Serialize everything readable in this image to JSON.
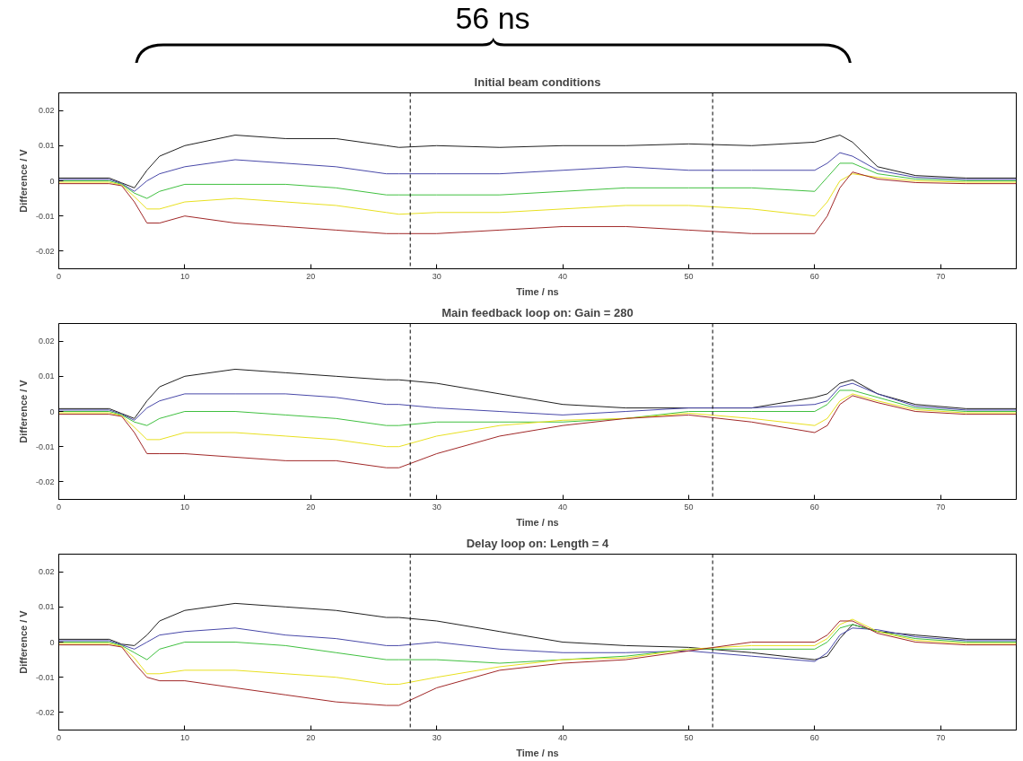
{
  "chart_data": [
    {
      "type": "line",
      "title": "Initial beam conditions",
      "xlabel": "Time / ns",
      "ylabel": "Difference / V",
      "xlim": [
        0,
        76
      ],
      "ylim": [
        -0.025,
        0.025
      ],
      "xticks": [
        0,
        10,
        20,
        30,
        40,
        50,
        60,
        70
      ],
      "yticks": [
        -0.02,
        -0.01,
        0,
        0.01,
        0.02
      ],
      "grid": false,
      "marker": "none",
      "line_style": "solid",
      "x": [
        0,
        4,
        5,
        6,
        7,
        8,
        10,
        14,
        18,
        22,
        26,
        27,
        30,
        35,
        40,
        45,
        50,
        55,
        60,
        61,
        62,
        63,
        65,
        68,
        72,
        76
      ],
      "series": [
        {
          "color": "#202020",
          "values": [
            0.0008,
            0.0008,
            -0.0006,
            -0.002,
            0.003,
            0.007,
            0.01,
            0.013,
            0.012,
            0.012,
            0.01,
            0.0095,
            0.01,
            0.0095,
            0.01,
            0.01,
            0.0105,
            0.01,
            0.011,
            0.012,
            0.013,
            0.011,
            0.004,
            0.0015,
            0.0008,
            0.0008
          ]
        },
        {
          "color": "#4848a8",
          "values": [
            0.0004,
            0.0004,
            -0.0008,
            -0.003,
            0,
            0.002,
            0.004,
            0.006,
            0.005,
            0.004,
            0.002,
            0.002,
            0.002,
            0.002,
            0.003,
            0.004,
            0.003,
            0.003,
            0.003,
            0.005,
            0.008,
            0.007,
            0.003,
            0.001,
            0.0004,
            0.0004
          ]
        },
        {
          "color": "#40c040",
          "values": [
            0,
            0,
            -0.001,
            -0.0035,
            -0.005,
            -0.003,
            -0.001,
            -0.001,
            -0.001,
            -0.002,
            -0.004,
            -0.004,
            -0.004,
            -0.004,
            -0.003,
            -0.002,
            -0.002,
            -0.002,
            -0.003,
            0.001,
            0.005,
            0.005,
            0.002,
            0.0005,
            0,
            0
          ]
        },
        {
          "color": "#e8e020",
          "values": [
            -0.0004,
            -0.0004,
            -0.0012,
            -0.0045,
            -0.008,
            -0.008,
            -0.006,
            -0.005,
            -0.006,
            -0.007,
            -0.009,
            -0.0095,
            -0.009,
            -0.009,
            -0.008,
            -0.007,
            -0.007,
            -0.008,
            -0.01,
            -0.006,
            0,
            0.002,
            0.001,
            0,
            -0.0004,
            -0.0004
          ]
        },
        {
          "color": "#a02828",
          "values": [
            -0.0008,
            -0.0008,
            -0.0014,
            -0.006,
            -0.012,
            -0.012,
            -0.01,
            -0.012,
            -0.013,
            -0.014,
            -0.015,
            -0.015,
            -0.015,
            -0.014,
            -0.013,
            -0.013,
            -0.014,
            -0.015,
            -0.015,
            -0.01,
            -0.002,
            0.0025,
            0.0005,
            -0.0005,
            -0.0008,
            -0.0008
          ]
        }
      ],
      "ref_lines": [
        {
          "axis": "x",
          "value": 27.9,
          "color": "#000000",
          "line_style": "dashed"
        },
        {
          "axis": "x",
          "value": 51.9,
          "color": "#000000",
          "line_style": "dashed"
        }
      ],
      "annotations": [
        "56 ns"
      ]
    },
    {
      "type": "line",
      "title": "Main feedback loop on: Gain = 280",
      "xlabel": "Time / ns",
      "ylabel": "Difference / V",
      "xlim": [
        0,
        76
      ],
      "ylim": [
        -0.025,
        0.025
      ],
      "xticks": [
        0,
        10,
        20,
        30,
        40,
        50,
        60,
        70
      ],
      "yticks": [
        -0.02,
        -0.01,
        0,
        0.01,
        0.02
      ],
      "grid": false,
      "marker": "none",
      "line_style": "solid",
      "x": [
        0,
        4,
        5,
        6,
        7,
        8,
        10,
        14,
        18,
        22,
        26,
        27,
        30,
        35,
        40,
        45,
        50,
        55,
        60,
        61,
        62,
        63,
        65,
        68,
        72,
        76
      ],
      "series": [
        {
          "color": "#202020",
          "values": [
            0.0008,
            0.0008,
            -0.0006,
            -0.002,
            0.003,
            0.007,
            0.01,
            0.012,
            0.011,
            0.01,
            0.009,
            0.009,
            0.008,
            0.005,
            0.002,
            0.001,
            0.001,
            0.001,
            0.004,
            0.005,
            0.008,
            0.009,
            0.005,
            0.002,
            0.0008,
            0.0008
          ]
        },
        {
          "color": "#4848a8",
          "values": [
            0.0004,
            0.0004,
            -0.0008,
            -0.0025,
            0.001,
            0.003,
            0.005,
            0.005,
            0.005,
            0.004,
            0.002,
            0.002,
            0.001,
            0,
            -0.001,
            0,
            0.001,
            0.001,
            0.002,
            0.003,
            0.007,
            0.008,
            0.005,
            0.0015,
            0.0004,
            0.0004
          ]
        },
        {
          "color": "#40c040",
          "values": [
            0,
            0,
            -0.001,
            -0.003,
            -0.004,
            -0.002,
            0,
            0,
            -0.001,
            -0.002,
            -0.004,
            -0.004,
            -0.003,
            -0.003,
            -0.003,
            -0.002,
            0,
            0,
            0,
            0.002,
            0.006,
            0.006,
            0.004,
            0.001,
            0,
            0
          ]
        },
        {
          "color": "#e8e020",
          "values": [
            -0.0004,
            -0.0004,
            -0.0012,
            -0.0045,
            -0.008,
            -0.008,
            -0.006,
            -0.006,
            -0.007,
            -0.008,
            -0.01,
            -0.01,
            -0.007,
            -0.004,
            -0.0025,
            -0.002,
            -0.0005,
            -0.002,
            -0.004,
            -0.002,
            0.003,
            0.005,
            0.003,
            0.0005,
            -0.0004,
            -0.0004
          ]
        },
        {
          "color": "#a02828",
          "values": [
            -0.0008,
            -0.0008,
            -0.0014,
            -0.006,
            -0.012,
            -0.012,
            -0.012,
            -0.013,
            -0.014,
            -0.014,
            -0.016,
            -0.016,
            -0.012,
            -0.007,
            -0.004,
            -0.002,
            -0.001,
            -0.003,
            -0.006,
            -0.004,
            0.002,
            0.0045,
            0.0025,
            0,
            -0.0008,
            -0.0008
          ]
        }
      ],
      "ref_lines": [
        {
          "axis": "x",
          "value": 27.9,
          "color": "#000000",
          "line_style": "dashed"
        },
        {
          "axis": "x",
          "value": 51.9,
          "color": "#000000",
          "line_style": "dashed"
        }
      ]
    },
    {
      "type": "line",
      "title": "Delay loop on: Length = 4",
      "xlabel": "Time / ns",
      "ylabel": "Difference / V",
      "xlim": [
        0,
        76
      ],
      "ylim": [
        -0.025,
        0.025
      ],
      "xticks": [
        0,
        10,
        20,
        30,
        40,
        50,
        60,
        70
      ],
      "yticks": [
        -0.02,
        -0.01,
        0,
        0.01,
        0.02
      ],
      "grid": false,
      "marker": "none",
      "line_style": "solid",
      "x": [
        0,
        4,
        5,
        6,
        7,
        8,
        10,
        14,
        18,
        22,
        26,
        27,
        30,
        35,
        40,
        45,
        50,
        55,
        60,
        61,
        62,
        63,
        65,
        68,
        72,
        76
      ],
      "series": [
        {
          "color": "#202020",
          "values": [
            0.0008,
            0.0008,
            -0.0006,
            -0.001,
            0.002,
            0.006,
            0.009,
            0.011,
            0.01,
            0.009,
            0.007,
            0.007,
            0.006,
            0.003,
            0,
            -0.001,
            -0.0015,
            -0.003,
            -0.005,
            -0.004,
            0.001,
            0.005,
            0.003,
            0.002,
            0.0008,
            0.0008
          ]
        },
        {
          "color": "#4848a8",
          "values": [
            0.0004,
            0.0004,
            -0.0008,
            -0.002,
            0,
            0.002,
            0.003,
            0.004,
            0.002,
            0.001,
            -0.001,
            -0.001,
            0,
            -0.002,
            -0.003,
            -0.003,
            -0.0025,
            -0.004,
            -0.0055,
            -0.003,
            0.002,
            0.004,
            0.0035,
            0.0015,
            0.0004,
            0.0004
          ]
        },
        {
          "color": "#40c040",
          "values": [
            0,
            0,
            -0.001,
            -0.003,
            -0.005,
            -0.002,
            0,
            0,
            -0.001,
            -0.003,
            -0.005,
            -0.005,
            -0.005,
            -0.006,
            -0.005,
            -0.004,
            -0.002,
            -0.002,
            -0.002,
            0,
            0.004,
            0.005,
            0.003,
            0.001,
            0,
            0
          ]
        },
        {
          "color": "#e8e020",
          "values": [
            -0.0004,
            -0.0004,
            -0.0012,
            -0.0045,
            -0.009,
            -0.009,
            -0.008,
            -0.008,
            -0.009,
            -0.01,
            -0.012,
            -0.012,
            -0.01,
            -0.007,
            -0.005,
            -0.0045,
            -0.002,
            -0.001,
            -0.001,
            0.001,
            0.005,
            0.0065,
            0.003,
            0.0005,
            -0.0004,
            -0.0004
          ]
        },
        {
          "color": "#a02828",
          "values": [
            -0.0008,
            -0.0008,
            -0.0014,
            -0.006,
            -0.01,
            -0.011,
            -0.011,
            -0.013,
            -0.015,
            -0.017,
            -0.018,
            -0.018,
            -0.013,
            -0.008,
            -0.006,
            -0.005,
            -0.0025,
            0,
            0,
            0.002,
            0.006,
            0.006,
            0.0025,
            0,
            -0.0008,
            -0.0008
          ]
        }
      ],
      "ref_lines": [
        {
          "axis": "x",
          "value": 27.9,
          "color": "#000000",
          "line_style": "dashed"
        },
        {
          "axis": "x",
          "value": 51.9,
          "color": "#000000",
          "line_style": "dashed"
        }
      ]
    }
  ]
}
